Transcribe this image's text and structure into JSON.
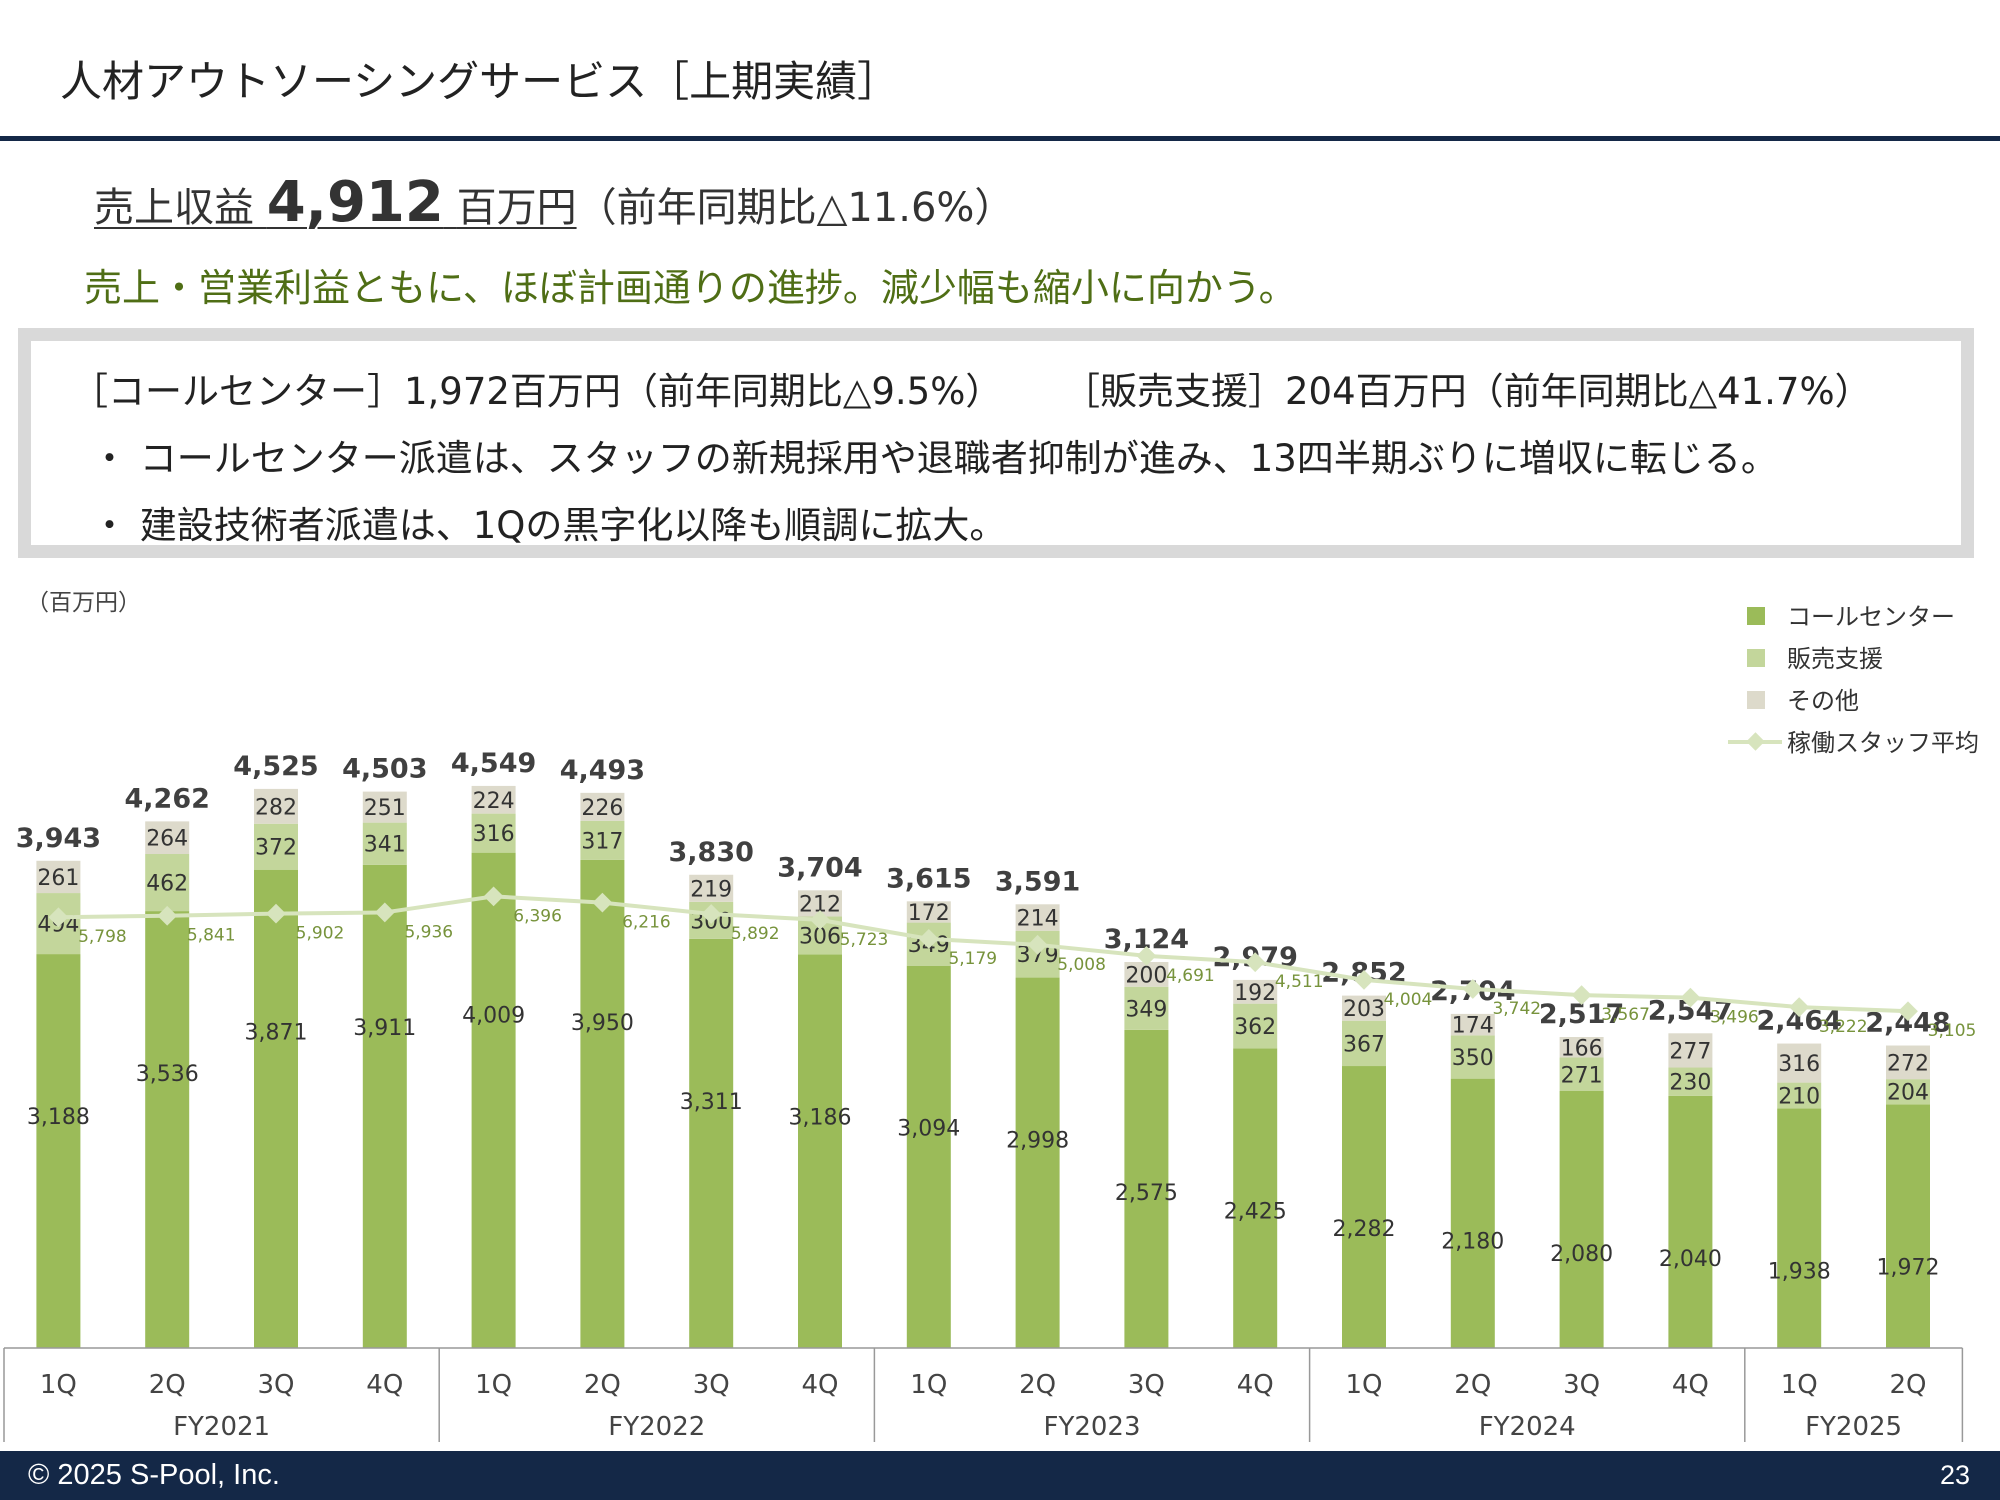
{
  "title": "人材アウトソーシングサービス［上期実績］",
  "headline": {
    "label": "売上収益",
    "value": "4,912",
    "unit": "百万円",
    "comparison": "（前年同期比△11.6%）"
  },
  "summary": "売上・営業利益ともに、ほぼ計画通りの進捗。減少幅も縮小に向かう。",
  "segments": {
    "line1_left": "［コールセンター］1,972百万円（前年同期比△9.5%）",
    "line1_right": "［販売支援］204百万円（前年同期比△41.7%）",
    "bullet1": "・ コールセンター派遣は、スタッフの新規採用や退職者抑制が進み、13四半期ぶりに増収に転じる。",
    "bullet2": "・ 建設技術者派遣は、1Qの黒字化以降も順調に拡大。"
  },
  "footer": {
    "copyright": "© 2025  S-Pool, Inc.",
    "page": "23"
  },
  "colors": {
    "callcenter": "#9bbb59",
    "sales": "#c3d69b",
    "other": "#dddacb",
    "staff_line": "#d7e4bd",
    "staff_label": "#77933c",
    "navy": "#142847"
  },
  "chart_data": {
    "type": "bar",
    "stacked": true,
    "unit_label": "（百万円）",
    "categories": [
      "1Q",
      "2Q",
      "3Q",
      "4Q",
      "1Q",
      "2Q",
      "3Q",
      "4Q",
      "1Q",
      "2Q",
      "3Q",
      "4Q",
      "1Q",
      "2Q",
      "3Q",
      "4Q",
      "1Q",
      "2Q"
    ],
    "fiscal_years": [
      {
        "label": "FY2021",
        "count": 4
      },
      {
        "label": "FY2022",
        "count": 4
      },
      {
        "label": "FY2023",
        "count": 4
      },
      {
        "label": "FY2024",
        "count": 4
      },
      {
        "label": "FY2025",
        "count": 2
      }
    ],
    "series": [
      {
        "name": "コールセンター",
        "values": [
          3188,
          3536,
          3871,
          3911,
          4009,
          3950,
          3311,
          3186,
          3094,
          2998,
          2575,
          2425,
          2282,
          2180,
          2080,
          2040,
          1938,
          1972
        ]
      },
      {
        "name": "販売支援",
        "values": [
          494,
          462,
          372,
          341,
          316,
          317,
          300,
          306,
          349,
          379,
          349,
          362,
          367,
          350,
          271,
          230,
          210,
          204
        ]
      },
      {
        "name": "その他",
        "values": [
          261,
          264,
          282,
          251,
          224,
          226,
          219,
          212,
          172,
          214,
          200,
          192,
          203,
          174,
          166,
          277,
          316,
          272
        ]
      }
    ],
    "totals": [
      "3,943",
      "4,262",
      "4,525",
      "4,503",
      "4,549",
      "4,493",
      "3,830",
      "3,704",
      "3,615",
      "3,591",
      "3,124",
      "2,979",
      "2,852",
      "2,704",
      "2,517",
      "2,547",
      "2,464",
      "2,448"
    ],
    "line_series": {
      "name": "稼働スタッフ平均",
      "values": [
        5798,
        5841,
        5902,
        5936,
        6396,
        6216,
        5892,
        5723,
        5179,
        5008,
        4691,
        4511,
        4004,
        3742,
        3567,
        3496,
        3222,
        3105
      ]
    },
    "legend": [
      "コールセンター",
      "販売支援",
      "その他",
      "稼働スタッフ平均"
    ],
    "legend_position": "top-right",
    "grid": false
  }
}
